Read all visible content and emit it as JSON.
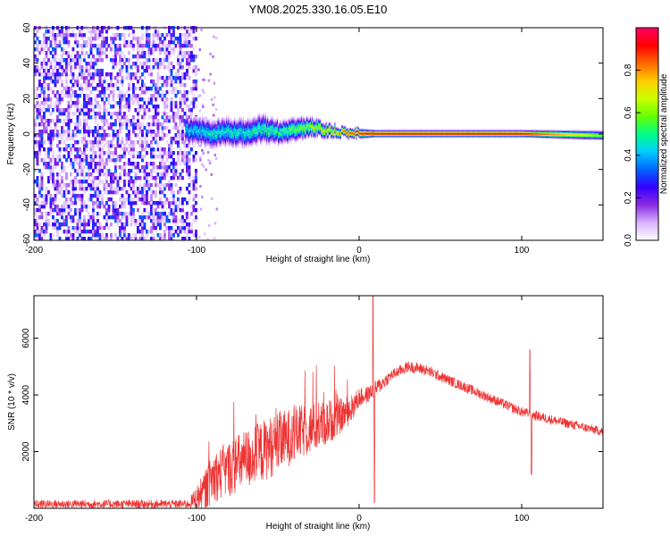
{
  "title": "YM08.2025.330.16.05.E10",
  "spectrogram": {
    "type": "heatmap",
    "xlabel": "Height of straight line (km)",
    "ylabel": "Frequency (Hz)",
    "xlim": [
      -200,
      150
    ],
    "ylim": [
      -60,
      60
    ],
    "xticks": [
      -200,
      -100,
      0,
      100
    ],
    "yticks": [
      -60,
      -40,
      -20,
      0,
      20,
      40,
      60
    ],
    "colorbar": {
      "label": "Normalized spectral amplitude",
      "range": [
        0,
        1
      ],
      "ticks": [
        "0.0",
        "0.2",
        "0.4",
        "0.6",
        "0.8"
      ],
      "colormap": [
        "#ffffff",
        "#d9b3ff",
        "#8a2be2",
        "#3300ff",
        "#0066ff",
        "#00ccff",
        "#00ff88",
        "#66ff00",
        "#ccff00",
        "#ffcc00",
        "#ff6600",
        "#ff0000",
        "#ff0066"
      ]
    },
    "noise_region": [
      -200,
      -100
    ],
    "signal_track": {
      "x": [
        -107,
        -100,
        -90,
        -80,
        -70,
        -60,
        -50,
        -40,
        -30,
        -20,
        -10,
        0,
        10,
        50,
        100,
        150
      ],
      "freq": [
        2,
        1,
        0,
        1,
        0,
        3,
        1,
        2,
        4,
        2,
        1,
        0,
        0,
        0,
        0,
        -1
      ],
      "width": [
        6,
        6,
        6,
        6,
        6,
        6,
        5,
        5,
        4,
        3,
        2,
        2,
        1.5,
        1.5,
        1.5,
        2
      ],
      "peak": [
        0.45,
        0.45,
        0.5,
        0.5,
        0.5,
        0.55,
        0.55,
        0.6,
        0.7,
        0.8,
        0.85,
        0.9,
        0.95,
        0.95,
        0.95,
        0.6
      ]
    }
  },
  "snr": {
    "type": "line",
    "xlabel": "Height of straight line (km)",
    "ylabel": "SNR (10 * v/v)",
    "xlim": [
      -200,
      150
    ],
    "ylim": [
      0,
      7500
    ],
    "xticks": [
      -200,
      -100,
      0,
      100
    ],
    "yticks": [
      2000,
      4000,
      6000
    ],
    "color": "#ee3333",
    "envelope": {
      "x": [
        -200,
        -105,
        -95,
        -90,
        -80,
        -70,
        -60,
        -50,
        -40,
        -30,
        -20,
        -10,
        -5,
        0,
        5,
        10,
        15,
        20,
        30,
        40,
        60,
        80,
        100,
        120,
        150
      ],
      "baseline": [
        150,
        150,
        600,
        1100,
        1400,
        1700,
        2000,
        2300,
        2600,
        2800,
        3000,
        3300,
        3500,
        3900,
        4000,
        4200,
        4450,
        4700,
        5000,
        4900,
        4400,
        3900,
        3400,
        3100,
        2700
      ],
      "spread": [
        150,
        150,
        700,
        900,
        1000,
        1100,
        1100,
        1100,
        1000,
        900,
        800,
        600,
        500,
        350,
        300,
        300,
        250,
        200,
        200,
        200,
        180,
        180,
        180,
        170,
        160
      ]
    },
    "spikes": [
      {
        "x": 8.5,
        "y": 7500
      },
      {
        "x": 9.5,
        "y": 200
      },
      {
        "x": 105,
        "y": 5600
      },
      {
        "x": 106,
        "y": 1200
      }
    ]
  }
}
